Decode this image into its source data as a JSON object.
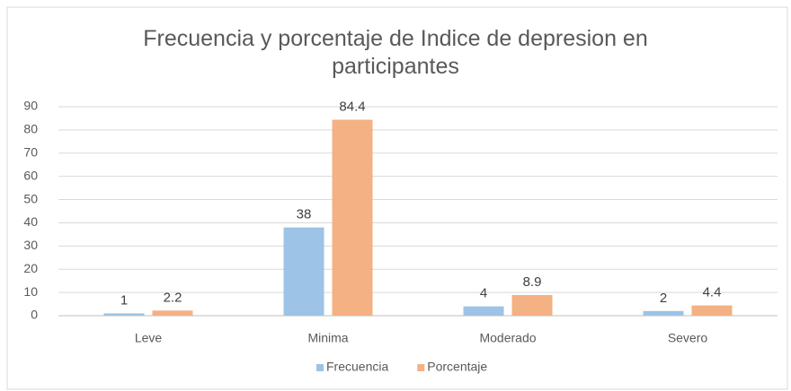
{
  "chart_data": {
    "type": "bar",
    "title": "Frecuencia y porcentaje de Indice de depresion en participantes",
    "categories": [
      "Leve",
      "Minima",
      "Moderado",
      "Severo"
    ],
    "series": [
      {
        "name": "Frecuencia",
        "color": "#9dc3e6",
        "values": [
          1,
          38,
          4,
          2
        ]
      },
      {
        "name": "Porcentaje",
        "color": "#f4b183",
        "values": [
          2.2,
          84.4,
          8.9,
          4.4
        ]
      }
    ],
    "ylim": [
      0,
      90
    ],
    "yticks": [
      0,
      10,
      20,
      30,
      40,
      50,
      60,
      70,
      80,
      90
    ],
    "grid": true,
    "legend": "bottom"
  }
}
